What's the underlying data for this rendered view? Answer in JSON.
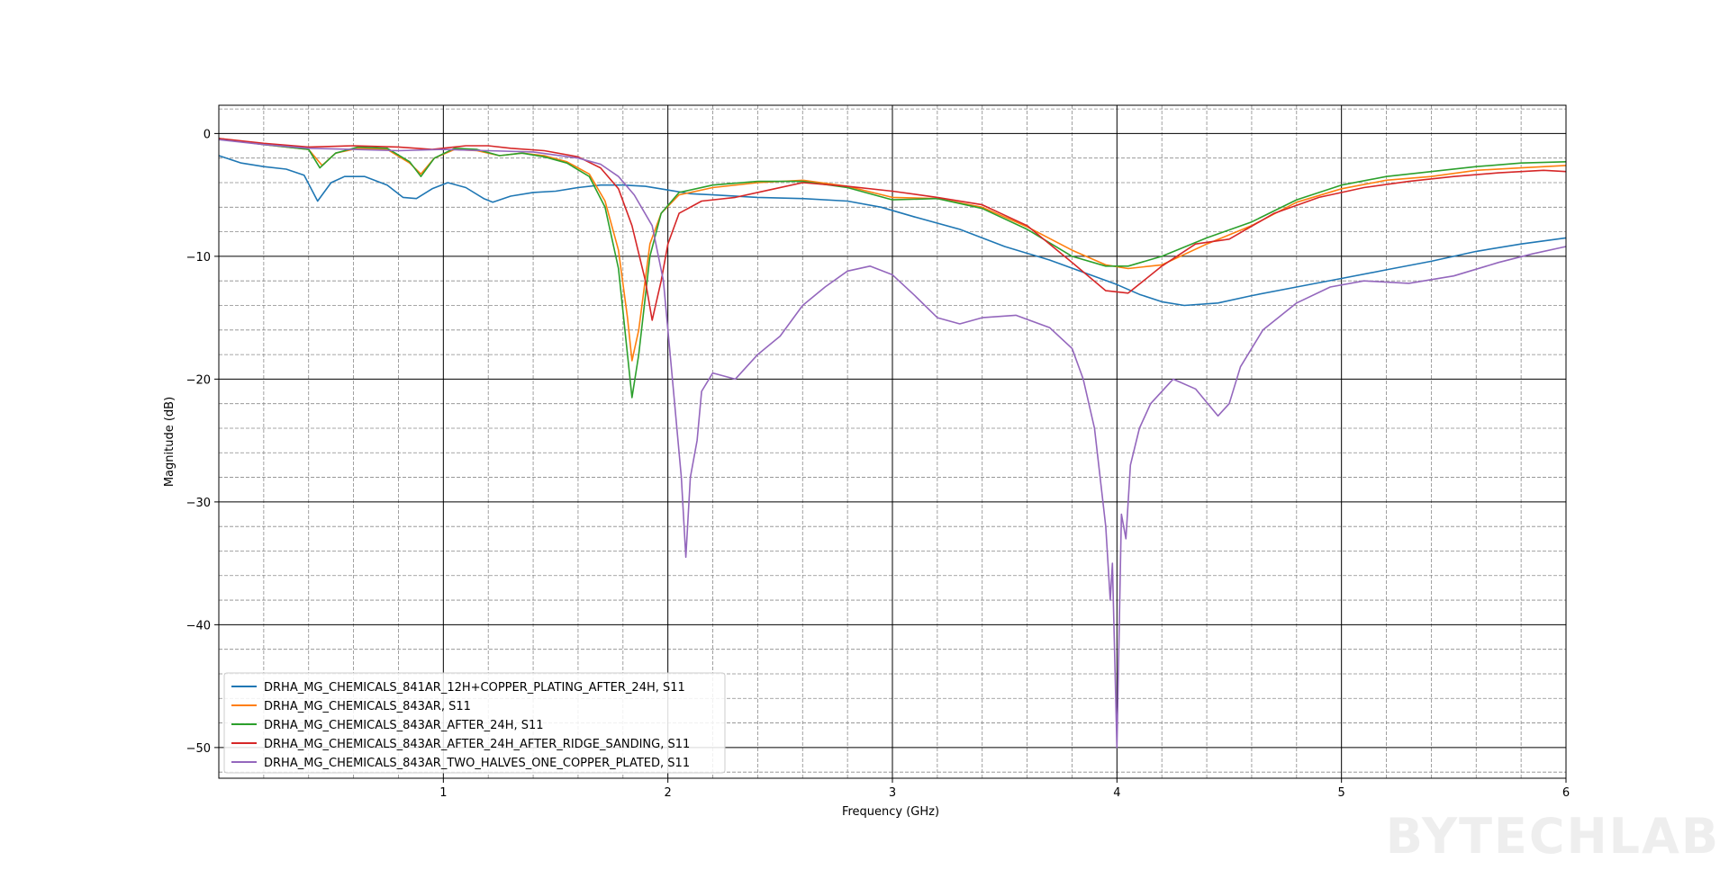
{
  "watermark": "BYTECHLAB",
  "chart_data": {
    "type": "line",
    "title": "",
    "xlabel": "Frequency (GHz)",
    "ylabel": "Magnitude (dB)",
    "xlim": [
      0,
      6
    ],
    "ylim": [
      -52.5,
      2.3
    ],
    "xticks": [
      1,
      2,
      3,
      4,
      5,
      6
    ],
    "xtick_labels": [
      "1",
      "2",
      "3",
      "4",
      "5",
      "6"
    ],
    "yticks": [
      0,
      -10,
      -20,
      -30,
      -40,
      -50
    ],
    "ytick_labels": [
      "0",
      "−10",
      "−20",
      "−30",
      "−40",
      "−50"
    ],
    "grid": "major solid black, minor dashed gray",
    "legend_placement": "lower-left",
    "series": [
      {
        "name": "DRHA_MG_CHEMICALS_841AR_12H+COPPER_PLATING_AFTER_24H, S11",
        "color": "#1f77b4",
        "points": [
          [
            0,
            -1.8
          ],
          [
            0.1,
            -2.4
          ],
          [
            0.2,
            -2.7
          ],
          [
            0.3,
            -2.9
          ],
          [
            0.38,
            -3.4
          ],
          [
            0.44,
            -5.5
          ],
          [
            0.5,
            -4
          ],
          [
            0.56,
            -3.5
          ],
          [
            0.65,
            -3.5
          ],
          [
            0.75,
            -4.2
          ],
          [
            0.82,
            -5.2
          ],
          [
            0.88,
            -5.3
          ],
          [
            0.95,
            -4.5
          ],
          [
            1.02,
            -4
          ],
          [
            1.1,
            -4.4
          ],
          [
            1.18,
            -5.3
          ],
          [
            1.22,
            -5.6
          ],
          [
            1.3,
            -5.1
          ],
          [
            1.4,
            -4.8
          ],
          [
            1.5,
            -4.7
          ],
          [
            1.6,
            -4.4
          ],
          [
            1.7,
            -4.2
          ],
          [
            1.8,
            -4.2
          ],
          [
            1.9,
            -4.3
          ],
          [
            2,
            -4.6
          ],
          [
            2.1,
            -4.9
          ],
          [
            2.2,
            -5
          ],
          [
            2.4,
            -5.2
          ],
          [
            2.6,
            -5.3
          ],
          [
            2.8,
            -5.5
          ],
          [
            2.95,
            -6
          ],
          [
            3.1,
            -6.8
          ],
          [
            3.3,
            -7.8
          ],
          [
            3.5,
            -9.2
          ],
          [
            3.7,
            -10.3
          ],
          [
            3.85,
            -11.3
          ],
          [
            4,
            -12.3
          ],
          [
            4.1,
            -13.1
          ],
          [
            4.2,
            -13.7
          ],
          [
            4.3,
            -14
          ],
          [
            4.45,
            -13.8
          ],
          [
            4.6,
            -13.2
          ],
          [
            4.8,
            -12.5
          ],
          [
            5,
            -11.8
          ],
          [
            5.2,
            -11.1
          ],
          [
            5.4,
            -10.4
          ],
          [
            5.6,
            -9.6
          ],
          [
            5.8,
            -9
          ],
          [
            6,
            -8.5
          ]
        ]
      },
      {
        "name": "DRHA_MG_CHEMICALS_843AR, S11",
        "color": "#ff7f0e",
        "points": [
          [
            0,
            -0.4
          ],
          [
            0.2,
            -0.9
          ],
          [
            0.4,
            -1.3
          ],
          [
            0.46,
            -2.6
          ],
          [
            0.52,
            -1.6
          ],
          [
            0.62,
            -1.2
          ],
          [
            0.75,
            -1.3
          ],
          [
            0.85,
            -2.4
          ],
          [
            0.9,
            -3.3
          ],
          [
            0.96,
            -2
          ],
          [
            1.05,
            -1.3
          ],
          [
            1.15,
            -1.4
          ],
          [
            1.25,
            -1.8
          ],
          [
            1.35,
            -1.6
          ],
          [
            1.45,
            -1.8
          ],
          [
            1.55,
            -2.3
          ],
          [
            1.65,
            -3.3
          ],
          [
            1.72,
            -5.5
          ],
          [
            1.78,
            -9.5
          ],
          [
            1.82,
            -15
          ],
          [
            1.84,
            -18.5
          ],
          [
            1.87,
            -16
          ],
          [
            1.92,
            -9
          ],
          [
            1.97,
            -6.5
          ],
          [
            2.05,
            -5
          ],
          [
            2.2,
            -4.4
          ],
          [
            2.4,
            -4
          ],
          [
            2.6,
            -3.8
          ],
          [
            2.8,
            -4.3
          ],
          [
            3,
            -5.2
          ],
          [
            3.2,
            -5.3
          ],
          [
            3.4,
            -6
          ],
          [
            3.6,
            -7.6
          ],
          [
            3.8,
            -9.5
          ],
          [
            3.95,
            -10.7
          ],
          [
            4.05,
            -11
          ],
          [
            4.2,
            -10.7
          ],
          [
            4.4,
            -9
          ],
          [
            4.6,
            -7.5
          ],
          [
            4.8,
            -5.6
          ],
          [
            5,
            -4.5
          ],
          [
            5.2,
            -3.8
          ],
          [
            5.4,
            -3.5
          ],
          [
            5.6,
            -3
          ],
          [
            5.8,
            -2.8
          ],
          [
            6,
            -2.6
          ]
        ]
      },
      {
        "name": "DRHA_MG_CHEMICALS_843AR_AFTER_24H, S11",
        "color": "#2ca02c",
        "points": [
          [
            0,
            -0.4
          ],
          [
            0.2,
            -0.9
          ],
          [
            0.4,
            -1.3
          ],
          [
            0.45,
            -2.8
          ],
          [
            0.52,
            -1.6
          ],
          [
            0.62,
            -1.1
          ],
          [
            0.75,
            -1.2
          ],
          [
            0.85,
            -2.3
          ],
          [
            0.9,
            -3.5
          ],
          [
            0.96,
            -2
          ],
          [
            1.05,
            -1.2
          ],
          [
            1.15,
            -1.3
          ],
          [
            1.25,
            -1.8
          ],
          [
            1.35,
            -1.6
          ],
          [
            1.45,
            -1.9
          ],
          [
            1.55,
            -2.4
          ],
          [
            1.65,
            -3.5
          ],
          [
            1.72,
            -6
          ],
          [
            1.78,
            -11
          ],
          [
            1.82,
            -18
          ],
          [
            1.84,
            -21.5
          ],
          [
            1.87,
            -18
          ],
          [
            1.92,
            -10
          ],
          [
            1.97,
            -6.5
          ],
          [
            2.05,
            -4.8
          ],
          [
            2.2,
            -4.2
          ],
          [
            2.4,
            -3.9
          ],
          [
            2.6,
            -3.9
          ],
          [
            2.8,
            -4.4
          ],
          [
            3,
            -5.4
          ],
          [
            3.2,
            -5.3
          ],
          [
            3.4,
            -6.1
          ],
          [
            3.6,
            -7.8
          ],
          [
            3.8,
            -10
          ],
          [
            3.95,
            -10.8
          ],
          [
            4.05,
            -10.8
          ],
          [
            4.2,
            -10
          ],
          [
            4.4,
            -8.5
          ],
          [
            4.6,
            -7.2
          ],
          [
            4.8,
            -5.4
          ],
          [
            5,
            -4.2
          ],
          [
            5.2,
            -3.5
          ],
          [
            5.4,
            -3.1
          ],
          [
            5.6,
            -2.7
          ],
          [
            5.8,
            -2.4
          ],
          [
            6,
            -2.3
          ]
        ]
      },
      {
        "name": "DRHA_MG_CHEMICALS_843AR_AFTER_24H_AFTER_RIDGE_SANDING, S11",
        "color": "#d62728",
        "points": [
          [
            0,
            -0.4
          ],
          [
            0.2,
            -0.8
          ],
          [
            0.4,
            -1.1
          ],
          [
            0.6,
            -1
          ],
          [
            0.8,
            -1.1
          ],
          [
            0.95,
            -1.3
          ],
          [
            1.1,
            -1
          ],
          [
            1.2,
            -1
          ],
          [
            1.3,
            -1.2
          ],
          [
            1.45,
            -1.4
          ],
          [
            1.6,
            -1.9
          ],
          [
            1.7,
            -2.8
          ],
          [
            1.78,
            -4.5
          ],
          [
            1.84,
            -7.5
          ],
          [
            1.9,
            -12
          ],
          [
            1.93,
            -15.2
          ],
          [
            1.97,
            -12
          ],
          [
            2,
            -9
          ],
          [
            2.05,
            -6.5
          ],
          [
            2.15,
            -5.5
          ],
          [
            2.3,
            -5.2
          ],
          [
            2.45,
            -4.6
          ],
          [
            2.6,
            -4
          ],
          [
            2.8,
            -4.3
          ],
          [
            3,
            -4.7
          ],
          [
            3.2,
            -5.2
          ],
          [
            3.4,
            -5.8
          ],
          [
            3.6,
            -7.5
          ],
          [
            3.8,
            -10.5
          ],
          [
            3.95,
            -12.8
          ],
          [
            4.05,
            -13
          ],
          [
            4.2,
            -10.8
          ],
          [
            4.35,
            -9
          ],
          [
            4.5,
            -8.6
          ],
          [
            4.7,
            -6.5
          ],
          [
            4.9,
            -5.2
          ],
          [
            5.1,
            -4.4
          ],
          [
            5.3,
            -3.9
          ],
          [
            5.5,
            -3.5
          ],
          [
            5.7,
            -3.2
          ],
          [
            5.9,
            -3
          ],
          [
            6,
            -3.1
          ]
        ]
      },
      {
        "name": "DRHA_MG_CHEMICALS_843AR_TWO_HALVES_ONE_COPPER_PLATED, S11",
        "color": "#9467bd",
        "points": [
          [
            0,
            -0.5
          ],
          [
            0.2,
            -0.9
          ],
          [
            0.4,
            -1.2
          ],
          [
            0.6,
            -1.3
          ],
          [
            0.8,
            -1.4
          ],
          [
            1,
            -1.3
          ],
          [
            1.2,
            -1.4
          ],
          [
            1.4,
            -1.5
          ],
          [
            1.6,
            -2
          ],
          [
            1.7,
            -2.5
          ],
          [
            1.78,
            -3.5
          ],
          [
            1.85,
            -5
          ],
          [
            1.93,
            -7.5
          ],
          [
            1.98,
            -12
          ],
          [
            2.02,
            -20
          ],
          [
            2.06,
            -28
          ],
          [
            2.08,
            -34.5
          ],
          [
            2.1,
            -28
          ],
          [
            2.13,
            -25
          ],
          [
            2.15,
            -21
          ],
          [
            2.2,
            -19.5
          ],
          [
            2.3,
            -20
          ],
          [
            2.4,
            -18
          ],
          [
            2.5,
            -16.5
          ],
          [
            2.6,
            -14
          ],
          [
            2.7,
            -12.5
          ],
          [
            2.8,
            -11.2
          ],
          [
            2.9,
            -10.8
          ],
          [
            3.0,
            -11.5
          ],
          [
            3.1,
            -13.2
          ],
          [
            3.2,
            -15
          ],
          [
            3.3,
            -15.5
          ],
          [
            3.4,
            -15
          ],
          [
            3.55,
            -14.8
          ],
          [
            3.7,
            -15.8
          ],
          [
            3.8,
            -17.5
          ],
          [
            3.85,
            -20
          ],
          [
            3.9,
            -24
          ],
          [
            3.95,
            -32
          ],
          [
            3.97,
            -38
          ],
          [
            3.98,
            -35
          ],
          [
            4.0,
            -50
          ],
          [
            4.02,
            -31
          ],
          [
            4.04,
            -33
          ],
          [
            4.06,
            -27
          ],
          [
            4.1,
            -24
          ],
          [
            4.15,
            -22
          ],
          [
            4.25,
            -20
          ],
          [
            4.35,
            -20.8
          ],
          [
            4.45,
            -23
          ],
          [
            4.5,
            -22
          ],
          [
            4.55,
            -19
          ],
          [
            4.65,
            -16
          ],
          [
            4.8,
            -13.8
          ],
          [
            4.95,
            -12.5
          ],
          [
            5.1,
            -12
          ],
          [
            5.3,
            -12.2
          ],
          [
            5.5,
            -11.6
          ],
          [
            5.7,
            -10.5
          ],
          [
            5.85,
            -9.8
          ],
          [
            6,
            -9.2
          ]
        ]
      }
    ]
  }
}
